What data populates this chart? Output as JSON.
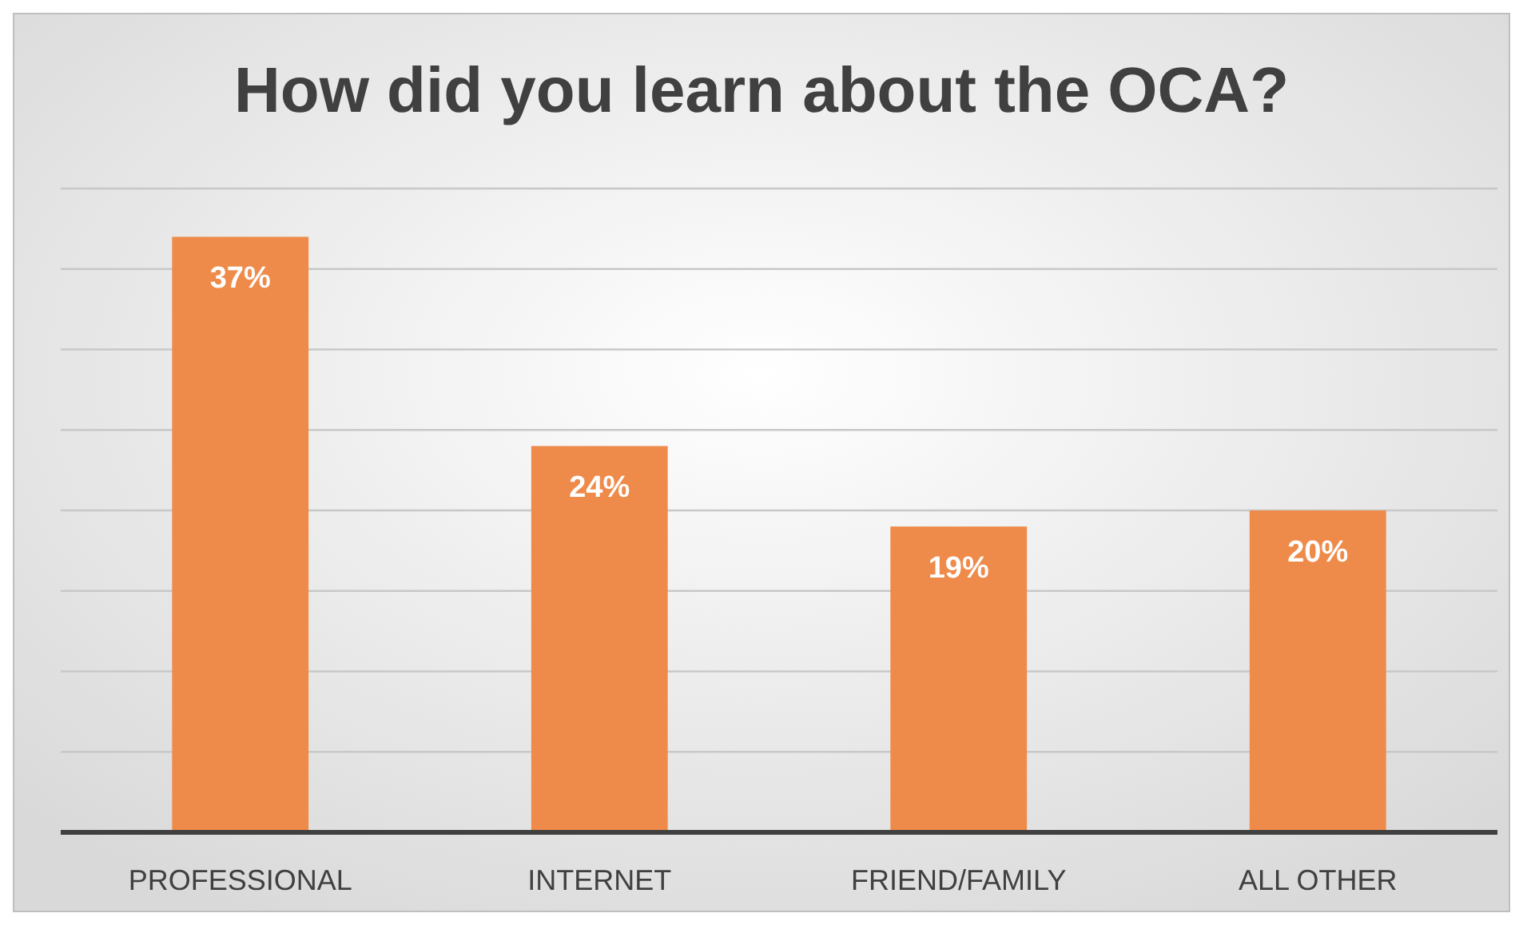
{
  "chart_data": {
    "type": "bar",
    "title": "How did you learn about the OCA?",
    "categories": [
      "PROFESSIONAL",
      "INTERNET",
      "FRIEND/FAMILY",
      "ALL OTHER"
    ],
    "values": [
      37,
      24,
      19,
      20
    ],
    "color": "#ef8b4a",
    "value_labels": [
      "37%",
      "24%",
      "19%",
      "20%"
    ],
    "ylim": [
      0,
      40
    ],
    "yticks": [
      {
        "value": 0,
        "label": null
      },
      {
        "value": 5,
        "label": null
      },
      {
        "value": 10,
        "label": null
      },
      {
        "value": 15,
        "label": null
      },
      {
        "value": 20,
        "label": null
      },
      {
        "value": 25,
        "label": null
      },
      {
        "value": 30,
        "label": null
      },
      {
        "value": 35,
        "label": null
      },
      {
        "value": 40,
        "label": null
      }
    ],
    "grid": "y",
    "tick_labels": "x"
  }
}
